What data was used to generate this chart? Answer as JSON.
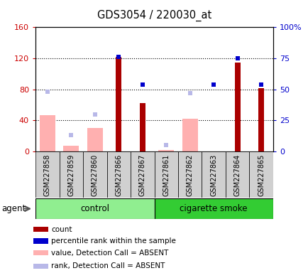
{
  "title": "GDS3054 / 220030_at",
  "samples": [
    "GSM227858",
    "GSM227859",
    "GSM227860",
    "GSM227866",
    "GSM227867",
    "GSM227861",
    "GSM227862",
    "GSM227863",
    "GSM227864",
    "GSM227865"
  ],
  "count_values": [
    null,
    null,
    null,
    122,
    62,
    null,
    null,
    null,
    115,
    82
  ],
  "percentile_rank": [
    null,
    null,
    null,
    76,
    54,
    null,
    null,
    54,
    75,
    54
  ],
  "absent_value": [
    47,
    7,
    30,
    null,
    null,
    2,
    42,
    null,
    null,
    null
  ],
  "absent_rank": [
    48,
    13,
    30,
    null,
    null,
    5,
    47,
    null,
    null,
    null
  ],
  "left_ylim": [
    0,
    160
  ],
  "right_ylim": [
    0,
    100
  ],
  "left_yticks": [
    0,
    40,
    80,
    120,
    160
  ],
  "left_yticklabels": [
    "0",
    "40",
    "80",
    "120",
    "160"
  ],
  "right_yticks": [
    0,
    25,
    50,
    75,
    100
  ],
  "right_yticklabels": [
    "0",
    "25",
    "50",
    "75",
    "100%"
  ],
  "grid_lines": [
    40,
    80,
    120
  ],
  "bar_color": "#aa0000",
  "percentile_color": "#0000cc",
  "absent_value_color": "#ffb0b0",
  "absent_rank_color": "#b8b8e8",
  "control_color": "#90ee90",
  "smoke_color": "#33cc33",
  "label_bg_color": "#d0d0d0",
  "agent_label": "agent",
  "group_control": "control",
  "group_smoke": "cigarette smoke",
  "n_control": 5,
  "n_smoke": 5,
  "legend_items": [
    {
      "label": "count",
      "color": "#aa0000"
    },
    {
      "label": "percentile rank within the sample",
      "color": "#0000cc"
    },
    {
      "label": "value, Detection Call = ABSENT",
      "color": "#ffb0b0"
    },
    {
      "label": "rank, Detection Call = ABSENT",
      "color": "#b8b8e8"
    }
  ]
}
